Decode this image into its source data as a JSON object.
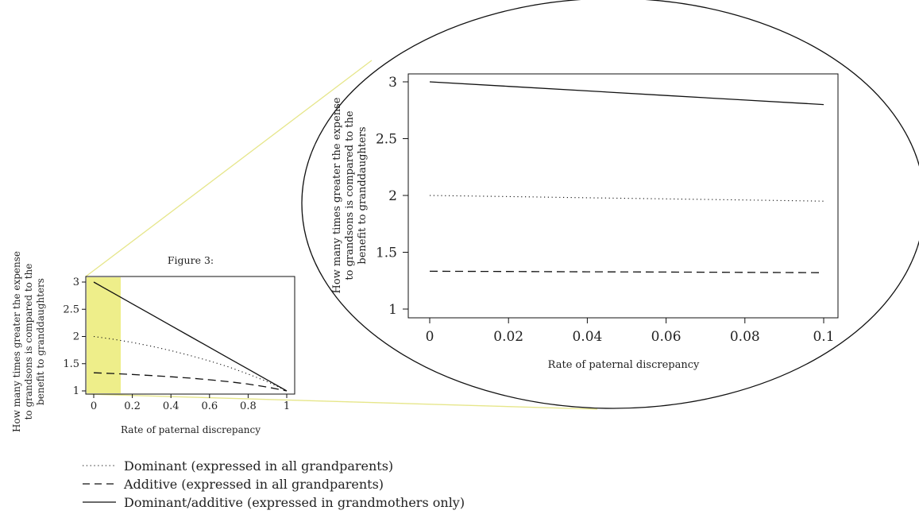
{
  "chart_data": [
    {
      "type": "line",
      "title": "Figure 3:",
      "xlabel": "Rate of paternal discrepancy",
      "ylabel_lines": [
        "How many times greater the expense",
        "to grandsons is compared to the",
        "benefit to granddaughters"
      ],
      "xlim": [
        0,
        1
      ],
      "ylim": [
        1,
        3
      ],
      "xticks": [
        "0",
        "0.2",
        "0.4",
        "0.6",
        "0.8",
        "1"
      ],
      "yticks": [
        "1",
        "1.5",
        "2",
        "2.5",
        "3"
      ],
      "highlight_x_range": [
        0,
        0.14
      ],
      "highlight_color": "#eeee8a",
      "x": [
        0,
        0.1,
        0.2,
        0.3,
        0.4,
        0.5,
        0.6,
        0.7,
        0.8,
        0.9,
        1.0
      ],
      "series": [
        {
          "name": "Dominant (expressed in all grandparents)",
          "style": "dotted",
          "values": [
            2.0,
            1.95,
            1.89,
            1.82,
            1.74,
            1.65,
            1.55,
            1.44,
            1.31,
            1.17,
            1.0
          ]
        },
        {
          "name": "Additive (expressed in all grandparents)",
          "style": "dashed",
          "values": [
            1.333,
            1.32,
            1.302,
            1.282,
            1.26,
            1.235,
            1.205,
            1.17,
            1.125,
            1.07,
            1.0
          ]
        },
        {
          "name": "Dominant/additive (expressed in grandmothers only)",
          "style": "solid",
          "values": [
            3.0,
            2.8,
            2.6,
            2.4,
            2.2,
            2.0,
            1.8,
            1.6,
            1.4,
            1.2,
            1.0
          ]
        }
      ]
    },
    {
      "type": "line",
      "title": "",
      "xlabel": "Rate of paternal discrepancy",
      "ylabel_lines": [
        "How many times greater the expense",
        "to grandsons is compared to the",
        "benefit to granddaughters"
      ],
      "xlim": [
        0,
        0.1
      ],
      "ylim": [
        1,
        3
      ],
      "xticks": [
        "0",
        "0.02",
        "0.04",
        "0.06",
        "0.08",
        "0.1"
      ],
      "yticks": [
        "1",
        "1.5",
        "2",
        "2.5",
        "3"
      ],
      "x": [
        0,
        0.02,
        0.04,
        0.06,
        0.08,
        0.1
      ],
      "series": [
        {
          "name": "Dominant (expressed in all grandparents)",
          "style": "dotted",
          "values": [
            2.0,
            1.99,
            1.98,
            1.97,
            1.96,
            1.95
          ]
        },
        {
          "name": "Additive (expressed in all grandparents)",
          "style": "dashed",
          "values": [
            1.333,
            1.331,
            1.328,
            1.326,
            1.323,
            1.32
          ]
        },
        {
          "name": "Dominant/additive (expressed in grandmothers only)",
          "style": "solid",
          "values": [
            3.0,
            2.96,
            2.92,
            2.88,
            2.84,
            2.8
          ]
        }
      ]
    }
  ],
  "legend": [
    {
      "style": "dotted",
      "label": "Dominant (expressed in all grandparents)"
    },
    {
      "style": "dashed",
      "label": "Additive (expressed in all grandparents)"
    },
    {
      "style": "solid",
      "label": "Dominant/additive (expressed in grandmothers only)"
    }
  ],
  "colors": {
    "line": "#111111",
    "zoom_connector": "#e6e68a"
  }
}
